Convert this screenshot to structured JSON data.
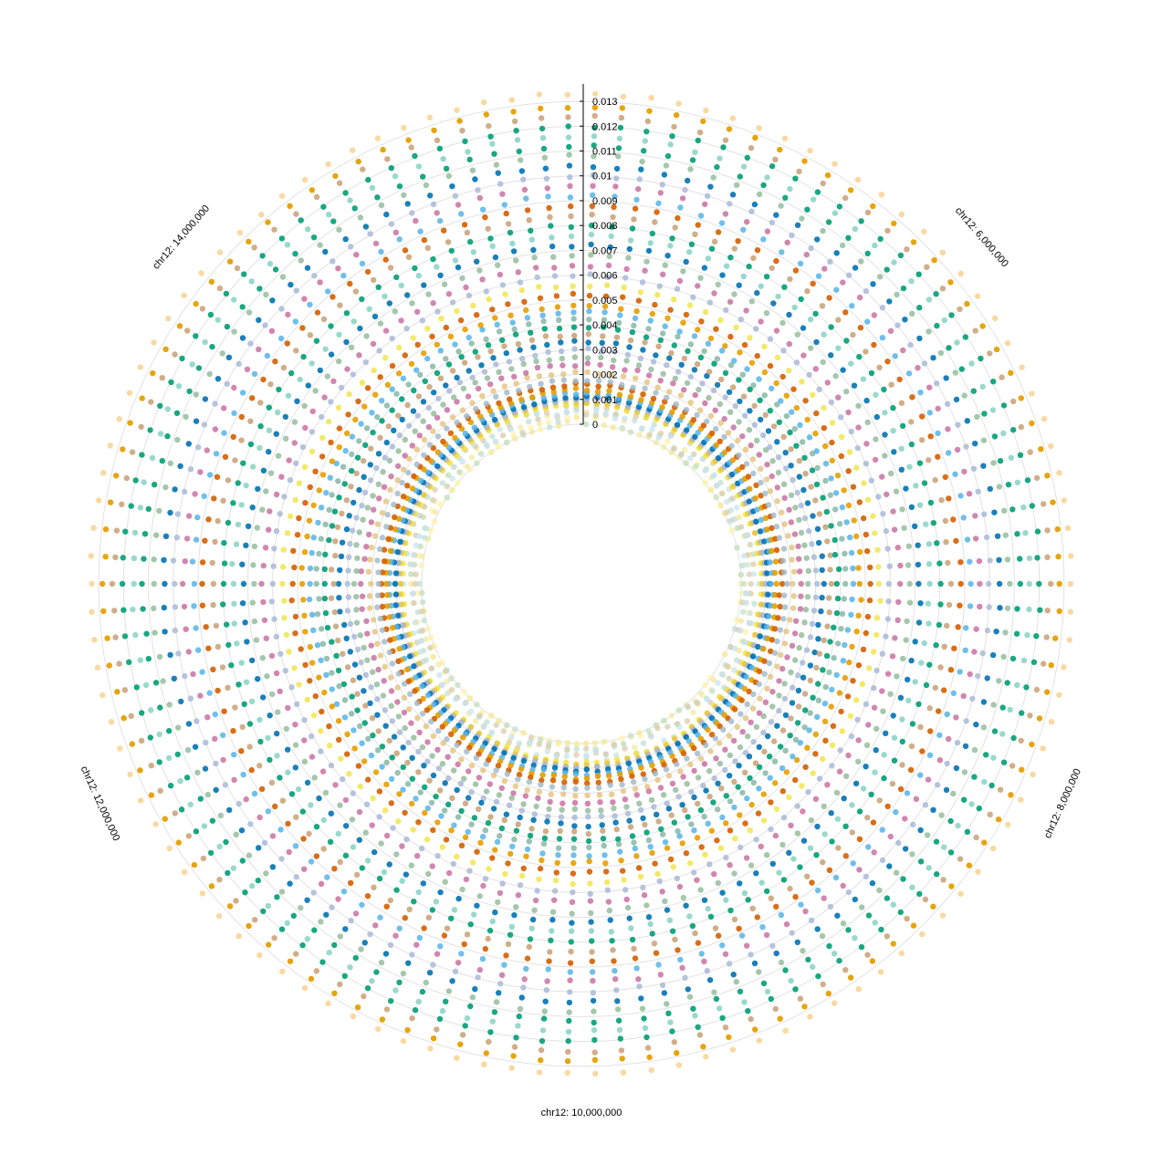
{
  "chart_data": {
    "type": "scatter",
    "layout": "radial",
    "title": "",
    "xlabel": "",
    "ylabel": "",
    "chromosome": "chr12",
    "x_range": [
      4500000,
      15500000
    ],
    "x_ticks": [
      6000000,
      8000000,
      10000000,
      12000000,
      14000000
    ],
    "x_tick_labels": [
      "chr12: 6,000,000",
      "chr12: 8,000,000",
      "chr12: 10,000,000",
      "chr12: 12,000,000",
      "chr12: 14,000,000"
    ],
    "ylim": [
      0,
      0.0137
    ],
    "y_ticks": [
      0,
      0.001,
      0.002,
      0.003,
      0.004,
      0.005,
      0.006,
      0.007,
      0.008,
      0.009,
      0.01,
      0.011,
      0.012,
      0.013
    ],
    "y_tick_labels": [
      "0",
      "0.001",
      "0.002",
      "0.003",
      "0.004",
      "0.005",
      "0.006",
      "0.007",
      "0.008",
      "0.009",
      "0.01",
      "0.011",
      "0.012",
      "0.013"
    ],
    "grid": true,
    "legend": "none",
    "bins": 110,
    "palette": [
      "#e69f00",
      "#009e73",
      "#0072b2",
      "#cc79a7",
      "#d55e00",
      "#56b4e9",
      "#f0e442",
      "#7fb3a0",
      "#a6b5d6",
      "#8fb996",
      "#c49a6c"
    ],
    "series": [
      {
        "value": 5e-05,
        "color": "#fff2a8",
        "opacity": 0.75
      },
      {
        "value": 0.00015,
        "color": "#f2e9a2",
        "opacity": 0.75
      },
      {
        "value": 0.0003,
        "color": "#bfe0d6",
        "opacity": 0.75
      },
      {
        "value": 0.00045,
        "color": "#d8ccb0",
        "opacity": 0.75
      },
      {
        "value": 0.0006,
        "color": "#c8e3f1",
        "opacity": 0.75
      },
      {
        "value": 0.0008,
        "color": "#f0e442",
        "opacity": 0.85
      },
      {
        "value": 0.0009,
        "color": "#e8c547",
        "opacity": 0.85
      },
      {
        "value": 0.001,
        "color": "#a6b5d6",
        "opacity": 0.85
      },
      {
        "value": 0.0011,
        "color": "#0072b2",
        "opacity": 0.9
      },
      {
        "value": 0.00125,
        "color": "#56b4e9",
        "opacity": 0.85
      },
      {
        "value": 0.0014,
        "color": "#e69f00",
        "opacity": 0.9
      },
      {
        "value": 0.0016,
        "color": "#d55e00",
        "opacity": 0.9
      },
      {
        "value": 0.0018,
        "color": "#9db8c9",
        "opacity": 0.8
      },
      {
        "value": 0.0021,
        "color": "#e3c27a",
        "opacity": 0.8
      },
      {
        "value": 0.0024,
        "color": "#cc79a7",
        "opacity": 0.9
      },
      {
        "value": 0.0027,
        "color": "#8fb996",
        "opacity": 0.8
      },
      {
        "value": 0.003,
        "color": "#a6b5d6",
        "opacity": 0.8
      },
      {
        "value": 0.0033,
        "color": "#0072b2",
        "opacity": 0.9
      },
      {
        "value": 0.0036,
        "color": "#c49a6c",
        "opacity": 0.8
      },
      {
        "value": 0.0039,
        "color": "#009e73",
        "opacity": 0.9
      },
      {
        "value": 0.0042,
        "color": "#7fb3a0",
        "opacity": 0.8
      },
      {
        "value": 0.0045,
        "color": "#56b4e9",
        "opacity": 0.85
      },
      {
        "value": 0.0048,
        "color": "#e69f00",
        "opacity": 0.9
      },
      {
        "value": 0.0052,
        "color": "#d55e00",
        "opacity": 0.9
      },
      {
        "value": 0.0056,
        "color": "#f0e442",
        "opacity": 0.8
      },
      {
        "value": 0.006,
        "color": "#a6b5d6",
        "opacity": 0.8
      },
      {
        "value": 0.0064,
        "color": "#cc79a7",
        "opacity": 0.9
      },
      {
        "value": 0.0068,
        "color": "#8fb996",
        "opacity": 0.8
      },
      {
        "value": 0.0072,
        "color": "#0072b2",
        "opacity": 0.9
      },
      {
        "value": 0.0076,
        "color": "#7fcfc0",
        "opacity": 0.8
      },
      {
        "value": 0.008,
        "color": "#009e73",
        "opacity": 0.9
      },
      {
        "value": 0.0084,
        "color": "#c49a6c",
        "opacity": 0.8
      },
      {
        "value": 0.0088,
        "color": "#d55e00",
        "opacity": 0.9
      },
      {
        "value": 0.0092,
        "color": "#56b4e9",
        "opacity": 0.85
      },
      {
        "value": 0.0096,
        "color": "#cc79a7",
        "opacity": 0.9
      },
      {
        "value": 0.01,
        "color": "#a6b5d6",
        "opacity": 0.8
      },
      {
        "value": 0.0104,
        "color": "#0072b2",
        "opacity": 0.9
      },
      {
        "value": 0.0108,
        "color": "#8fb996",
        "opacity": 0.8
      },
      {
        "value": 0.0112,
        "color": "#009e73",
        "opacity": 0.9
      },
      {
        "value": 0.0116,
        "color": "#7fcfc0",
        "opacity": 0.8
      },
      {
        "value": 0.012,
        "color": "#009e73",
        "opacity": 0.9
      },
      {
        "value": 0.0124,
        "color": "#c49a6c",
        "opacity": 0.8
      },
      {
        "value": 0.0128,
        "color": "#e69f00",
        "opacity": 0.95
      },
      {
        "value": 0.0133,
        "color": "#f5c97a",
        "opacity": 0.7
      }
    ]
  }
}
